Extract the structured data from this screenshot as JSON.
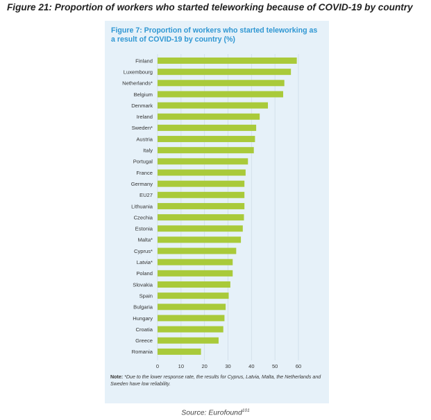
{
  "figure_title": "Figure 21: Proportion of workers who started teleworking because of COVID-19 by country",
  "chart_data": {
    "type": "bar",
    "orientation": "horizontal",
    "title": "Figure 7: Proportion of workers who started teleworking as a result of COVID-19 by country (%)",
    "categories": [
      "Finland",
      "Luxembourg",
      "Netherlands*",
      "Belgium",
      "Denmark",
      "Ireland",
      "Sweden*",
      "Austria",
      "Italy",
      "Portugal",
      "France",
      "Germany",
      "EU27",
      "Lithuania",
      "Czechia",
      "Estonia",
      "Malta*",
      "Cyprus*",
      "Latvia*",
      "Poland",
      "Slovakia",
      "Spain",
      "Bulgaria",
      "Hungary",
      "Croatia",
      "Greece",
      "Romania"
    ],
    "values": [
      59.3,
      56.8,
      54.0,
      53.5,
      47.0,
      43.5,
      42.0,
      41.5,
      41.0,
      38.5,
      37.5,
      37.0,
      37.0,
      37.0,
      36.8,
      36.3,
      35.5,
      33.5,
      32.0,
      32.0,
      31.0,
      30.3,
      29.0,
      28.5,
      28.0,
      26.0,
      18.5
    ],
    "xlim": [
      0,
      60
    ],
    "xticks": [
      0,
      10,
      20,
      30,
      40,
      50,
      60
    ],
    "bar_color": "#a9ca3a",
    "gridlines": true
  },
  "note": {
    "label": "Note:",
    "text": "*Due to the lower response rate, the results for Cyprus, Latvia, Malta, the Netherlands and Sweden have low reliability."
  },
  "source": {
    "text": "Source: Eurofound",
    "ref": "101"
  }
}
